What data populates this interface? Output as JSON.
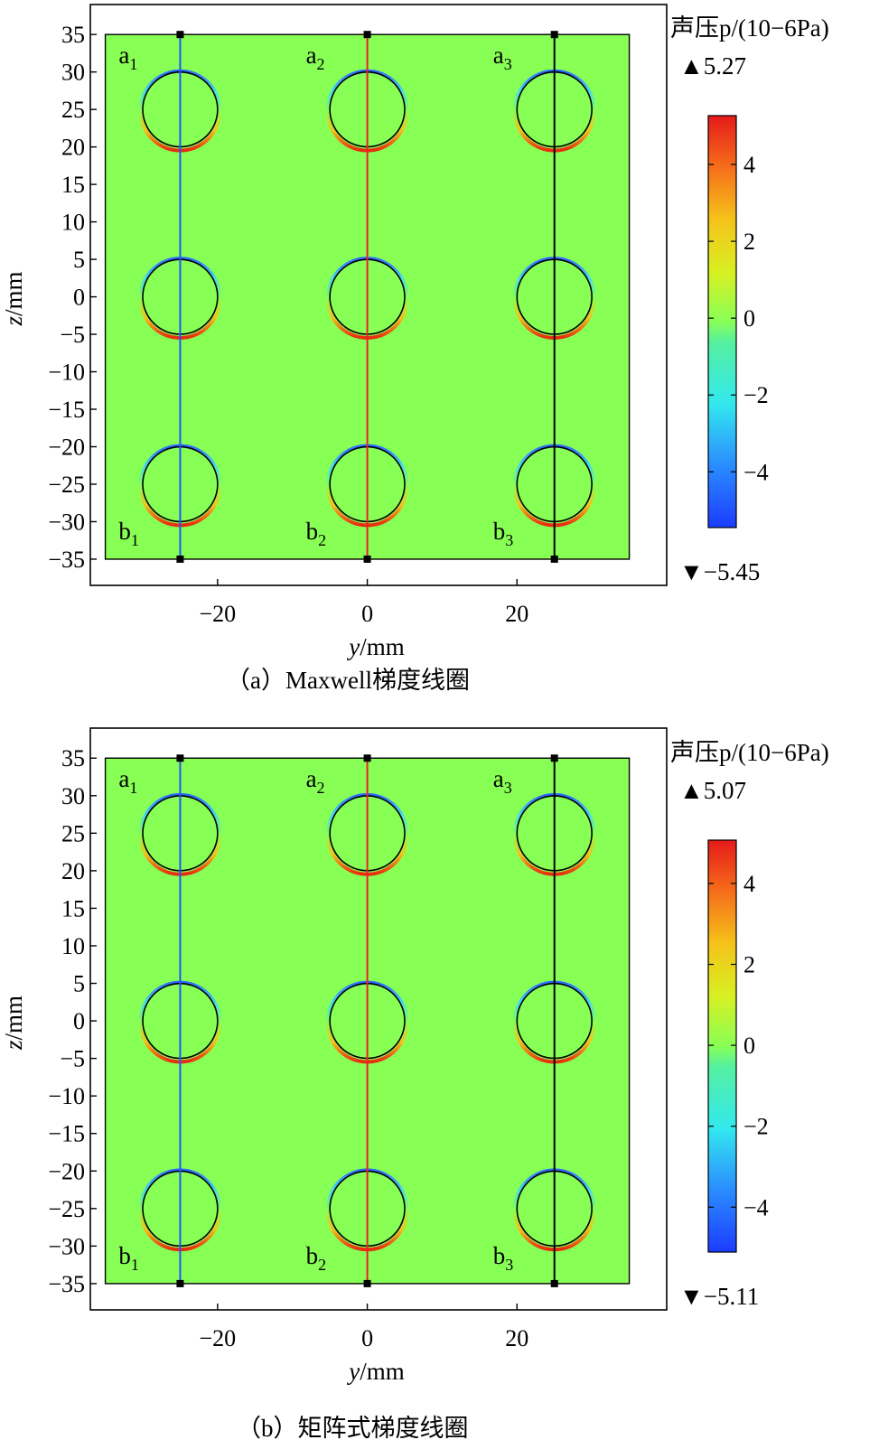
{
  "panels": [
    {
      "caption": "（a）Maxwell梯度线圈",
      "colorbar_title": "声压p/(10−6Pa)",
      "max_label": "▲5.27",
      "min_label": "▼−5.45",
      "chart_data": {
        "type": "heatmap",
        "title": "",
        "xlabel": "y/mm",
        "ylabel": "z/mm",
        "xlim": [
          -37,
          40
        ],
        "ylim": [
          -38.5,
          39
        ],
        "x_ticks": [
          -20,
          0,
          20
        ],
        "y_ticks": [
          35,
          30,
          25,
          20,
          15,
          10,
          5,
          0,
          -5,
          -10,
          -15,
          -20,
          -25,
          -30,
          -35
        ],
        "domain": {
          "y": [
            -35,
            35
          ],
          "z": [
            -35,
            35
          ]
        },
        "circles": [
          {
            "y": -25,
            "z": 25,
            "r": 5
          },
          {
            "y": 0,
            "z": 25,
            "r": 5
          },
          {
            "y": 25,
            "z": 25,
            "r": 5
          },
          {
            "y": -25,
            "z": 0,
            "r": 5
          },
          {
            "y": 0,
            "z": 0,
            "r": 5
          },
          {
            "y": 25,
            "z": 0,
            "r": 5
          },
          {
            "y": -25,
            "z": -25,
            "r": 5
          },
          {
            "y": 0,
            "z": -25,
            "r": 5
          },
          {
            "y": 25,
            "z": -25,
            "r": 5
          }
        ],
        "lines": [
          {
            "y": -25,
            "color": "#2255ff",
            "top_label": "a1",
            "bottom_label": "b1"
          },
          {
            "y": 0,
            "color": "#ee2222",
            "top_label": "a2",
            "bottom_label": "b2"
          },
          {
            "y": 25,
            "color": "#000000",
            "top_label": "a3",
            "bottom_label": "b3"
          }
        ],
        "colorbar": {
          "min": -5.45,
          "max": 5.27,
          "ticks": [
            4,
            2,
            0,
            -2,
            -4
          ],
          "tick_labels": [
            "4",
            "2",
            "0",
            "−2",
            "−4"
          ]
        }
      }
    },
    {
      "caption": "（b）矩阵式梯度线圈",
      "colorbar_title": "声压p/(10−6Pa)",
      "max_label": "▲5.07",
      "min_label": "▼−5.11",
      "chart_data": {
        "type": "heatmap",
        "title": "",
        "xlabel": "y/mm",
        "ylabel": "z/mm",
        "xlim": [
          -37,
          40
        ],
        "ylim": [
          -38.5,
          39
        ],
        "x_ticks": [
          -20,
          0,
          20
        ],
        "y_ticks": [
          35,
          30,
          25,
          20,
          15,
          10,
          5,
          0,
          -5,
          -10,
          -15,
          -20,
          -25,
          -30,
          -35
        ],
        "domain": {
          "y": [
            -35,
            35
          ],
          "z": [
            -35,
            35
          ]
        },
        "circles": [
          {
            "y": -25,
            "z": 25,
            "r": 5
          },
          {
            "y": 0,
            "z": 25,
            "r": 5
          },
          {
            "y": 25,
            "z": 25,
            "r": 5
          },
          {
            "y": -25,
            "z": 0,
            "r": 5
          },
          {
            "y": 0,
            "z": 0,
            "r": 5
          },
          {
            "y": 25,
            "z": 0,
            "r": 5
          },
          {
            "y": -25,
            "z": -25,
            "r": 5
          },
          {
            "y": 0,
            "z": -25,
            "r": 5
          },
          {
            "y": 25,
            "z": -25,
            "r": 5
          }
        ],
        "lines": [
          {
            "y": -25,
            "color": "#2255ff",
            "top_label": "a1",
            "bottom_label": "b1"
          },
          {
            "y": 0,
            "color": "#ee2222",
            "top_label": "a2",
            "bottom_label": "b2"
          },
          {
            "y": 25,
            "color": "#000000",
            "top_label": "a3",
            "bottom_label": "b3"
          }
        ],
        "colorbar": {
          "min": -5.11,
          "max": 5.07,
          "ticks": [
            4,
            2,
            0,
            -2,
            -4
          ],
          "tick_labels": [
            "4",
            "2",
            "0",
            "−2",
            "−4"
          ]
        }
      }
    }
  ],
  "colors": {
    "field": "#88ff55",
    "frame": "#000000"
  }
}
